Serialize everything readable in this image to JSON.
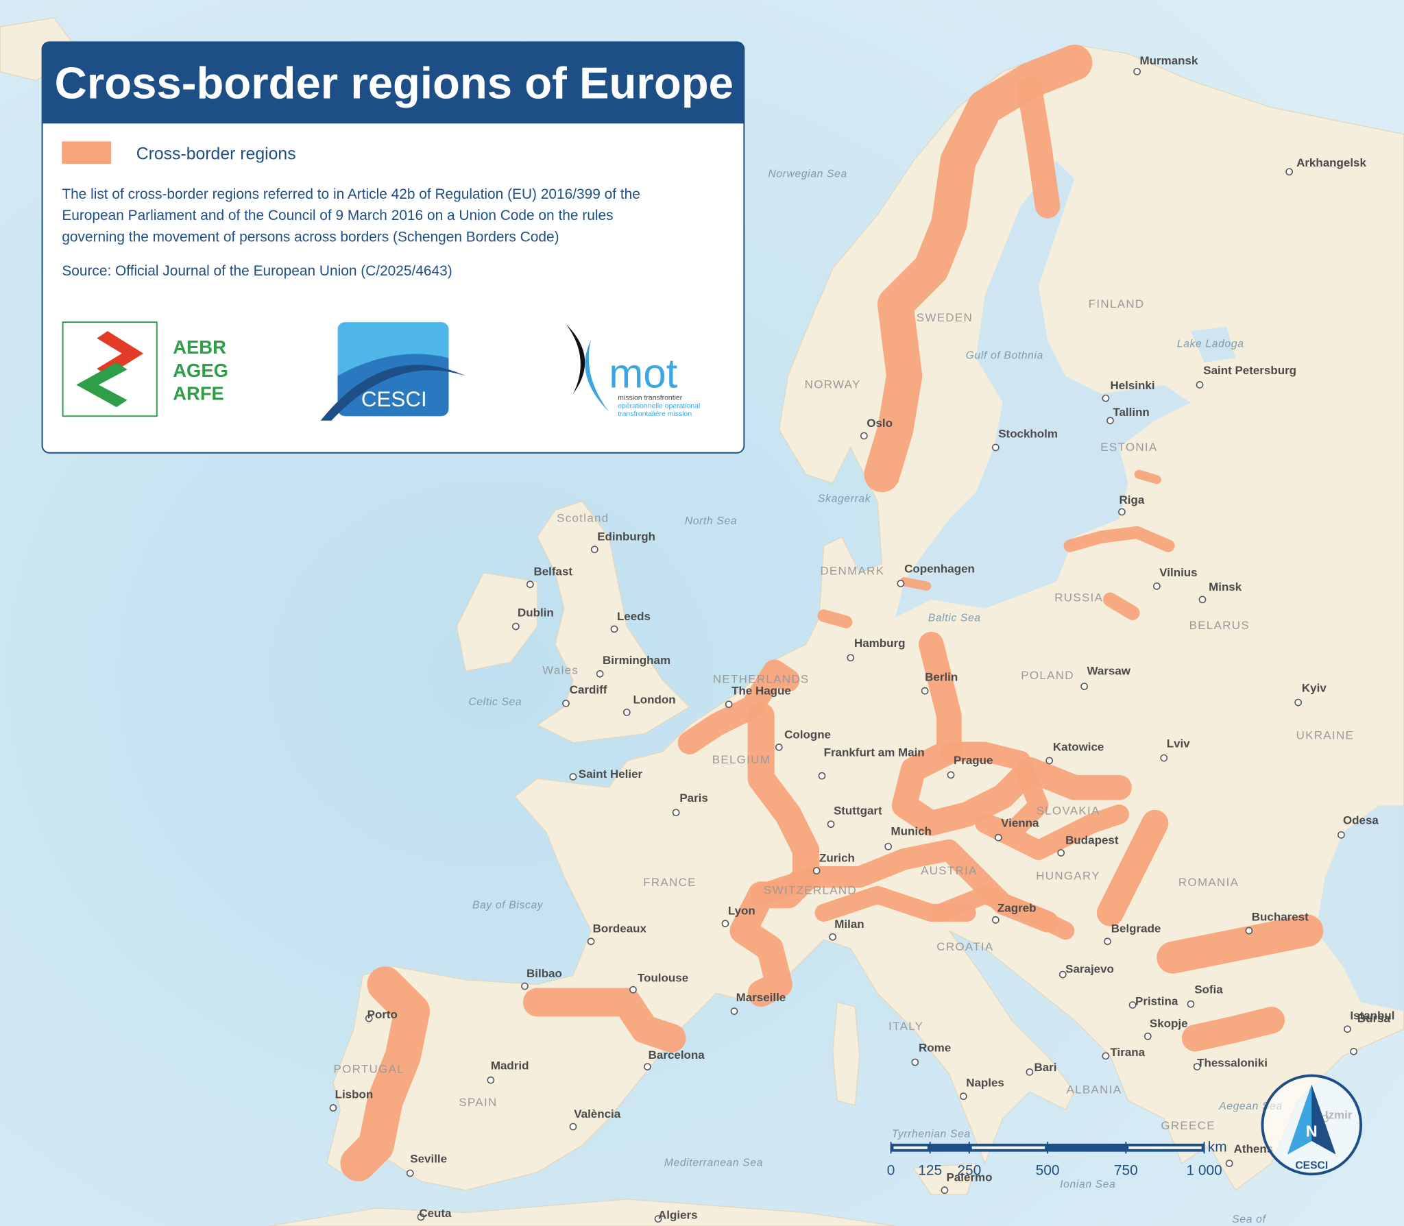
{
  "title": "Cross-border regions of Europe",
  "legend": {
    "label": "Cross-border regions",
    "color": "#f7a47b"
  },
  "description": [
    "The list of cross-border regions referred to in Article 42b of Regulation (EU) 2016/399 of the",
    "European Parliament and of the Council of 9 March 2016 on a Union Code on the rules",
    "governing the movement of persons across borders (Schengen Borders Code)"
  ],
  "source": "Source: Official Journal of the European Union (C/2025/4643)",
  "logos": {
    "aebr": [
      "AEBR",
      "AGEG",
      "ARFE"
    ],
    "cesci": "CESCI",
    "mot": {
      "name": "mot",
      "lines": [
        "mission transfrontier",
        "opérationnelle operational",
        "transfrontalière mission"
      ]
    }
  },
  "map_labels": {
    "cities": [
      "Murmansk",
      "Arkhangelsk",
      "Oslo",
      "Stockholm",
      "Helsinki",
      "Tallinn",
      "Saint Petersburg",
      "Riga",
      "Edinburgh",
      "Belfast",
      "Dublin",
      "Leeds",
      "Birmingham",
      "Cardiff",
      "London",
      "Copenhagen",
      "Hamburg",
      "Berlin",
      "Vilnius",
      "Minsk",
      "Warsaw",
      "Kyiv",
      "Lviv",
      "Katowice",
      "Prague",
      "The Hague",
      "Cologne",
      "Frankfurt am Main",
      "Paris",
      "Saint Helier",
      "Stuttgart",
      "Munich",
      "Vienna",
      "Budapest",
      "Zurich",
      "Odesa",
      "Lyon",
      "Milan",
      "Zagreb",
      "Bordeaux",
      "Belgrade",
      "Bucharest",
      "Marseille",
      "Toulouse",
      "Bilbao",
      "Porto",
      "Sarajevo",
      "Sofia",
      "Pristina",
      "Skopje",
      "Istanbul",
      "Bursa",
      "Tirana",
      "Thessaloniki",
      "Madrid",
      "Barcelona",
      "Rome",
      "Bari",
      "Naples",
      "Lisbon",
      "València",
      "Seville",
      "Athens",
      "Palermo",
      "Izmir",
      "Ceuta",
      "Algiers"
    ],
    "countries": [
      "SWEDEN",
      "FINLAND",
      "NORWAY",
      "ESTONIA",
      "DENMARK",
      "RUSSIA",
      "BELARUS",
      "POLAND",
      "NETHERLANDS",
      "BELGIUM",
      "UKRAINE",
      "SLOVAKIA",
      "AUSTRIA",
      "HUNGARY",
      "ROMANIA",
      "FRANCE",
      "SWITZERLAND",
      "CROATIA",
      "ITALY",
      "PORTUGAL",
      "SPAIN",
      "ALBANIA",
      "GREECE",
      "Scotland",
      "Wales"
    ],
    "seas": [
      "Norwegian Sea",
      "North Sea",
      "Gulf of Bothnia",
      "Lake Ladoga",
      "Skagerrak",
      "Baltic Sea",
      "Celtic Sea",
      "Bay of Biscay",
      "Tyrrhenian Sea",
      "Mediterranean Sea",
      "Ionian Sea",
      "Aegean Sea",
      "Sea of"
    ]
  },
  "scale_bar": {
    "unit": "km",
    "ticks": [
      0,
      125,
      250,
      500,
      750,
      {
        "value": 1000,
        "label": "1 000"
      }
    ]
  },
  "north_arrow": {
    "letter": "N",
    "brand": "CESCI"
  }
}
